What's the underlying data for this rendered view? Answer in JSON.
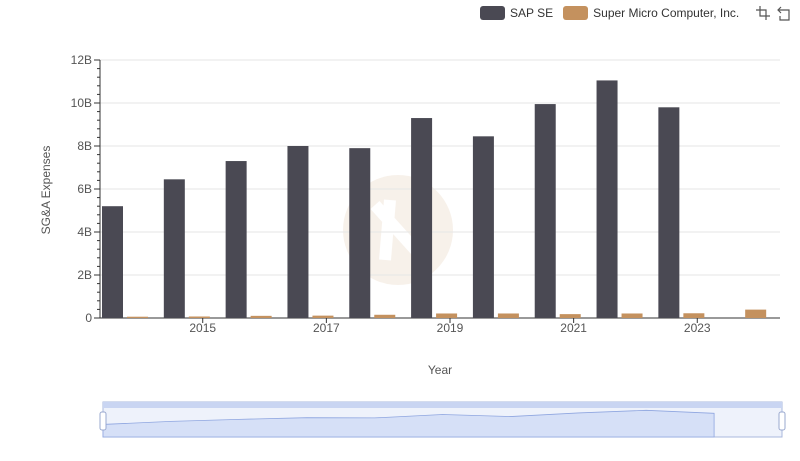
{
  "legend": {
    "items": [
      {
        "label": "SAP SE",
        "color": "#4a4953"
      },
      {
        "label": "Super Micro Computer, Inc.",
        "color": "#c4915e"
      }
    ]
  },
  "toolbar": {
    "icons": [
      "zoom-select-icon",
      "zoom-reset-icon"
    ]
  },
  "chart_data": {
    "type": "bar",
    "xlabel": "Year",
    "ylabel": "SG&A Expenses",
    "ylim": [
      0,
      12000000000
    ],
    "yticks": [
      "0",
      "2B",
      "4B",
      "6B",
      "8B",
      "10B",
      "12B"
    ],
    "xticks": [
      "2015",
      "2017",
      "2019",
      "2021",
      "2023"
    ],
    "categories": [
      2014,
      2015,
      2016,
      2017,
      2018,
      2019,
      2020,
      2021,
      2022,
      2023,
      2024
    ],
    "grid": true,
    "legend_position": "top-right",
    "series": [
      {
        "name": "SAP SE",
        "color": "#4a4953",
        "values": [
          5200000000,
          6450000000,
          7300000000,
          8000000000,
          7900000000,
          9300000000,
          8450000000,
          9950000000,
          11050000000,
          9800000000,
          null
        ]
      },
      {
        "name": "Super Micro Computer, Inc.",
        "color": "#c4915e",
        "values": [
          60000000,
          70000000,
          100000000,
          110000000,
          150000000,
          210000000,
          210000000,
          180000000,
          210000000,
          220000000,
          390000000
        ]
      }
    ]
  },
  "slider": {
    "fill": "#d6e0f7",
    "border": "#aab8de"
  }
}
